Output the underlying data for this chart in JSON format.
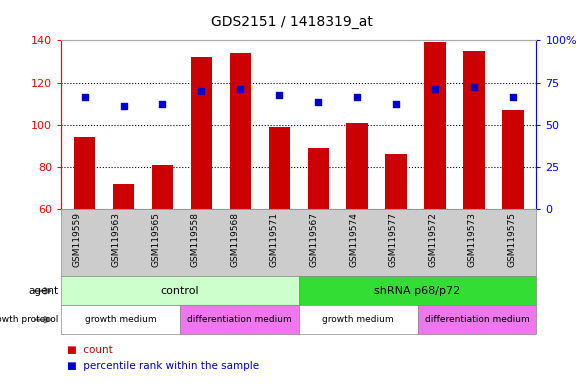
{
  "title": "GDS2151 / 1418319_at",
  "samples": [
    "GSM119559",
    "GSM119563",
    "GSM119565",
    "GSM119558",
    "GSM119568",
    "GSM119571",
    "GSM119567",
    "GSM119574",
    "GSM119577",
    "GSM119572",
    "GSM119573",
    "GSM119575"
  ],
  "counts": [
    94,
    72,
    81,
    132,
    134,
    99,
    89,
    101,
    86,
    139,
    135,
    107
  ],
  "percentile_ranks_left": [
    113,
    109,
    110,
    116,
    117,
    114,
    111,
    113,
    110,
    117,
    118,
    113
  ],
  "ylim_left": [
    60,
    140
  ],
  "ylim_right": [
    0,
    100
  ],
  "yticks_left": [
    60,
    80,
    100,
    120,
    140
  ],
  "yticks_right": [
    0,
    25,
    50,
    75,
    100
  ],
  "ytick_labels_right": [
    "0",
    "25",
    "50",
    "75",
    "100%"
  ],
  "bar_color": "#cc0000",
  "dot_color": "#0000cc",
  "agent_groups": [
    {
      "label": "control",
      "start": 0,
      "end": 6,
      "color": "#ccffcc"
    },
    {
      "label": "shRNA p68/p72",
      "start": 6,
      "end": 12,
      "color": "#33dd33"
    }
  ],
  "growth_groups": [
    {
      "label": "growth medium",
      "start": 0,
      "end": 3,
      "color": "#ffffff"
    },
    {
      "label": "differentiation medium",
      "start": 3,
      "end": 6,
      "color": "#ee77ee"
    },
    {
      "label": "growth medium",
      "start": 6,
      "end": 9,
      "color": "#ffffff"
    },
    {
      "label": "differentiation medium",
      "start": 9,
      "end": 12,
      "color": "#ee77ee"
    }
  ],
  "tick_area_color": "#cccccc",
  "plot_bg_color": "#ffffff"
}
